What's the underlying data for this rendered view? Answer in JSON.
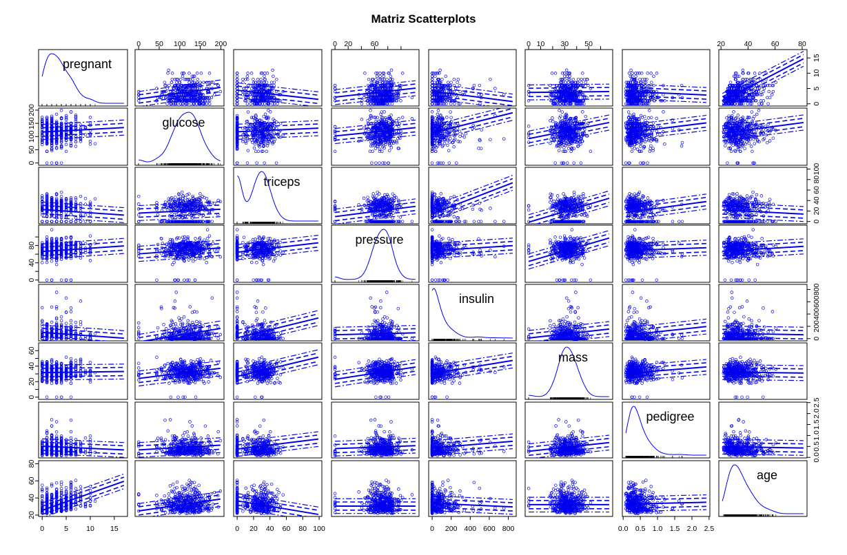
{
  "chart_data": {
    "type": "scatter",
    "subtype": "scatterplot-matrix",
    "title": "Matriz Scatterplots",
    "variables": [
      "pregnant",
      "glucose",
      "triceps",
      "pressure",
      "insulin",
      "mass",
      "pedigree",
      "age"
    ],
    "ranges": {
      "pregnant": [
        0,
        17
      ],
      "glucose": [
        0,
        199
      ],
      "triceps": [
        0,
        99
      ],
      "pressure": [
        0,
        122
      ],
      "insulin": [
        0,
        846
      ],
      "mass": [
        0,
        67.1
      ],
      "pedigree": [
        0.078,
        2.42
      ],
      "age": [
        21,
        81
      ]
    },
    "ticks": {
      "pregnant": [
        0,
        5,
        10,
        15
      ],
      "glucose": [
        0,
        50,
        100,
        150,
        200
      ],
      "triceps": [
        0,
        20,
        40,
        60,
        80,
        100
      ],
      "pressure": [
        0,
        20,
        40,
        60,
        80,
        100
      ],
      "insulin": [
        0,
        200,
        400,
        600,
        800
      ],
      "mass": [
        0,
        10,
        20,
        30,
        40,
        50,
        60
      ],
      "pedigree": [
        0,
        0.5,
        1.0,
        1.5,
        2.0,
        2.5
      ],
      "age": [
        20,
        40,
        60,
        80
      ]
    },
    "tick_labels": {
      "pregnant": [
        "0",
        "5",
        "10",
        "15"
      ],
      "glucose": [
        "0",
        "50",
        "100",
        "150",
        "200"
      ],
      "triceps": [
        "0",
        "20",
        "40",
        "60",
        "80",
        "100"
      ],
      "pressure_bottom": [
        "0",
        "20",
        "",
        "60",
        "",
        ""
      ],
      "pressure_left": [
        "0",
        "",
        "40",
        "",
        "80",
        ""
      ],
      "insulin": [
        "0",
        "200",
        "400",
        "600",
        "800"
      ],
      "mass_top": [
        "0",
        "10",
        "",
        "30",
        "",
        "50",
        ""
      ],
      "mass_left": [
        "0",
        "",
        "20",
        "",
        "40",
        "",
        "60"
      ],
      "pedigree": [
        "0.0",
        "0.5",
        "1.0",
        "1.5",
        "2.0",
        "2.5"
      ],
      "age": [
        "20",
        "40",
        "60",
        "80"
      ]
    },
    "pairs": [
      {
        "x": "glucose",
        "y": "pregnant",
        "slope": 0.019,
        "intercept": 1.56
      },
      {
        "x": "triceps",
        "y": "pregnant",
        "slope": -0.03,
        "intercept": 4.43
      },
      {
        "x": "pressure",
        "y": "pregnant",
        "slope": 0.024,
        "intercept": 2.18
      },
      {
        "x": "insulin",
        "y": "pregnant",
        "slope": -0.004,
        "intercept": 4.12
      },
      {
        "x": "mass",
        "y": "pregnant",
        "slope": 0.004,
        "intercept": 3.72
      },
      {
        "x": "pedigree",
        "y": "pregnant",
        "slope": -0.5,
        "intercept": 4.08
      },
      {
        "x": "age",
        "y": "pregnant",
        "slope": 0.23,
        "intercept": -3.9
      },
      {
        "x": "pregnant",
        "y": "glucose",
        "slope": 1.0,
        "intercept": 117
      },
      {
        "x": "triceps",
        "y": "glucose",
        "slope": 0.14,
        "intercept": 118
      },
      {
        "x": "pressure",
        "y": "glucose",
        "slope": 0.26,
        "intercept": 102
      },
      {
        "x": "insulin",
        "y": "glucose",
        "slope": 0.09,
        "intercept": 114
      },
      {
        "x": "mass",
        "y": "glucose",
        "slope": 0.91,
        "intercept": 92
      },
      {
        "x": "pedigree",
        "y": "glucose",
        "slope": 16,
        "intercept": 113
      },
      {
        "x": "age",
        "y": "glucose",
        "slope": 0.68,
        "intercept": 98
      },
      {
        "x": "pregnant",
        "y": "triceps",
        "slope": -0.63,
        "intercept": 22.9
      },
      {
        "x": "glucose",
        "y": "triceps",
        "slope": 0.037,
        "intercept": 16.1
      },
      {
        "x": "pressure",
        "y": "triceps",
        "slope": 0.16,
        "intercept": 9.4
      },
      {
        "x": "insulin",
        "y": "triceps",
        "slope": 0.07,
        "intercept": 14.7
      },
      {
        "x": "mass",
        "y": "triceps",
        "slope": 0.68,
        "intercept": -1.3
      },
      {
        "x": "pedigree",
        "y": "triceps",
        "slope": 9.0,
        "intercept": 16.3
      },
      {
        "x": "age",
        "y": "triceps",
        "slope": -0.13,
        "intercept": 24.8
      },
      {
        "x": "pregnant",
        "y": "pressure",
        "slope": 0.76,
        "intercept": 66.2
      },
      {
        "x": "glucose",
        "y": "pressure",
        "slope": 0.07,
        "intercept": 60.7
      },
      {
        "x": "triceps",
        "y": "pressure",
        "slope": 0.22,
        "intercept": 64.6
      },
      {
        "x": "insulin",
        "y": "pressure",
        "slope": 0.014,
        "intercept": 67.9
      },
      {
        "x": "mass",
        "y": "pressure",
        "slope": 0.81,
        "intercept": 43.1
      },
      {
        "x": "pedigree",
        "y": "pressure",
        "slope": 3.0,
        "intercept": 67.7
      },
      {
        "x": "age",
        "y": "pressure",
        "slope": 0.19,
        "intercept": 62.7
      },
      {
        "x": "pregnant",
        "y": "insulin",
        "slope": -5.5,
        "intercept": 100.6
      },
      {
        "x": "glucose",
        "y": "insulin",
        "slope": 1.1,
        "intercept": -54
      },
      {
        "x": "triceps",
        "y": "insulin",
        "slope": 3.26,
        "intercept": 12.8
      },
      {
        "x": "pressure",
        "y": "insulin",
        "slope": 0.25,
        "intercept": 62.4
      },
      {
        "x": "mass",
        "y": "insulin",
        "slope": 2.17,
        "intercept": 9.8
      },
      {
        "x": "pedigree",
        "y": "insulin",
        "slope": 60,
        "intercept": 51
      },
      {
        "x": "age",
        "y": "insulin",
        "slope": -0.35,
        "intercept": 91.5
      },
      {
        "x": "pregnant",
        "y": "mass",
        "slope": 0.08,
        "intercept": 31.7
      },
      {
        "x": "glucose",
        "y": "mass",
        "slope": 0.066,
        "intercept": 24.1
      },
      {
        "x": "triceps",
        "y": "mass",
        "slope": 0.25,
        "intercept": 26.8
      },
      {
        "x": "pressure",
        "y": "mass",
        "slope": 0.13,
        "intercept": 23.0
      },
      {
        "x": "insulin",
        "y": "mass",
        "slope": 0.02,
        "intercept": 30.4
      },
      {
        "x": "pedigree",
        "y": "mass",
        "slope": 3.6,
        "intercept": 30.3
      },
      {
        "x": "age",
        "y": "mass",
        "slope": -0.02,
        "intercept": 32.7
      },
      {
        "x": "pregnant",
        "y": "pedigree",
        "slope": -0.01,
        "intercept": 0.51
      },
      {
        "x": "glucose",
        "y": "pedigree",
        "slope": 0.0011,
        "intercept": 0.34
      },
      {
        "x": "triceps",
        "y": "pedigree",
        "slope": 0.0046,
        "intercept": 0.38
      },
      {
        "x": "pressure",
        "y": "pedigree",
        "slope": 0.0011,
        "intercept": 0.4
      },
      {
        "x": "insulin",
        "y": "pedigree",
        "slope": 0.00036,
        "intercept": 0.43
      },
      {
        "x": "mass",
        "y": "pedigree",
        "slope": 0.0059,
        "intercept": 0.28
      },
      {
        "x": "age",
        "y": "pedigree",
        "slope": -0.001,
        "intercept": 0.51
      },
      {
        "x": "pregnant",
        "y": "age",
        "slope": 2.0,
        "intercept": 25.5
      },
      {
        "x": "glucose",
        "y": "age",
        "slope": 0.07,
        "intercept": 24.8
      },
      {
        "x": "triceps",
        "y": "age",
        "slope": -0.16,
        "intercept": 36.6
      },
      {
        "x": "pressure",
        "y": "age",
        "slope": 0.0,
        "intercept": 30.5
      },
      {
        "x": "insulin",
        "y": "age",
        "slope": -0.005,
        "intercept": 33.8
      },
      {
        "x": "mass",
        "y": "age",
        "slope": 0.0,
        "intercept": 32.2
      },
      {
        "x": "pedigree",
        "y": "age",
        "slope": 0.9,
        "intercept": 32.8
      }
    ],
    "color": "#0000ee",
    "grid": false,
    "legend": "none"
  }
}
